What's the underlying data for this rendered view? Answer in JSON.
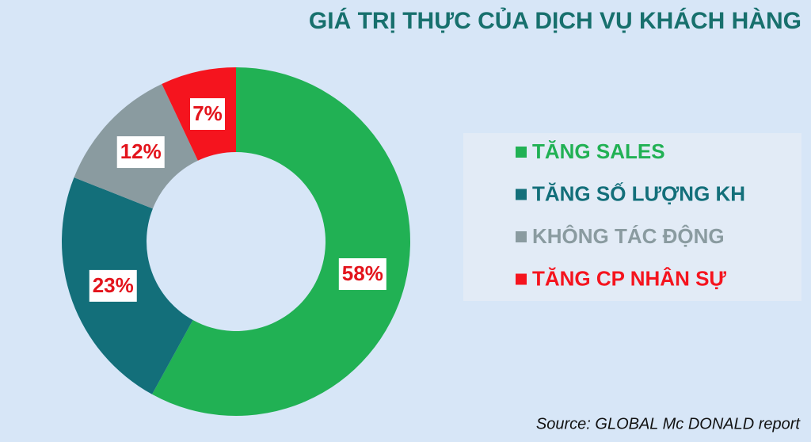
{
  "chart_data": {
    "type": "donut",
    "title": "GIÁ TRỊ THỰC CỦA DỊCH VỤ KHÁCH HÀNG",
    "source": "Source: GLOBAL Mc DONALD report",
    "categories": [
      "TĂNG SALES",
      "TĂNG SỐ LƯỢNG KH",
      "KHÔNG TÁC ĐỘNG",
      "TĂNG CP NHÂN SỰ"
    ],
    "values": [
      58,
      23,
      12,
      7
    ],
    "value_labels": [
      "58%",
      "23%",
      "12%",
      "7%"
    ],
    "colors": [
      "#21b154",
      "#136f7a",
      "#8a9ba0",
      "#f5141e"
    ]
  }
}
